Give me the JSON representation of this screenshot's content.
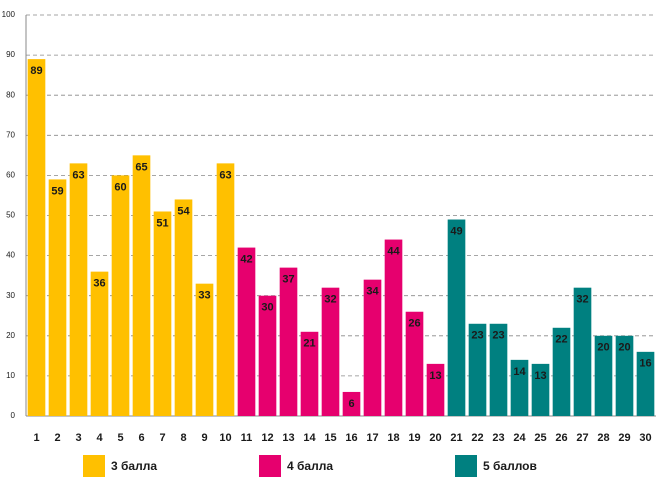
{
  "chart_data": {
    "type": "bar",
    "categories": [
      "1",
      "2",
      "3",
      "4",
      "5",
      "6",
      "7",
      "8",
      "9",
      "10",
      "11",
      "12",
      "13",
      "14",
      "15",
      "16",
      "17",
      "18",
      "19",
      "20",
      "21",
      "22",
      "23",
      "24",
      "25",
      "26",
      "27",
      "28",
      "29",
      "30"
    ],
    "series": [
      {
        "name": "3 балла",
        "color": "#FFC000",
        "values": [
          89,
          59,
          63,
          36,
          60,
          65,
          51,
          54,
          33,
          63,
          null,
          null,
          null,
          null,
          null,
          null,
          null,
          null,
          null,
          null,
          null,
          null,
          null,
          null,
          null,
          null,
          null,
          null,
          null,
          null
        ]
      },
      {
        "name": "4 балла",
        "color": "#E6006E",
        "values": [
          null,
          null,
          null,
          null,
          null,
          null,
          null,
          null,
          null,
          null,
          42,
          30,
          37,
          21,
          32,
          6,
          34,
          44,
          26,
          13,
          null,
          null,
          null,
          null,
          null,
          null,
          null,
          null,
          null,
          null
        ]
      },
      {
        "name": "5 баллов",
        "color": "#008080",
        "values": [
          null,
          null,
          null,
          null,
          null,
          null,
          null,
          null,
          null,
          null,
          null,
          null,
          null,
          null,
          null,
          null,
          null,
          null,
          null,
          null,
          49,
          23,
          23,
          14,
          13,
          22,
          32,
          20,
          20,
          16
        ]
      }
    ],
    "ylim": [
      0,
      100
    ],
    "yticks": [
      0,
      10,
      20,
      30,
      40,
      50,
      60,
      70,
      80,
      90,
      100
    ],
    "grid": true
  }
}
